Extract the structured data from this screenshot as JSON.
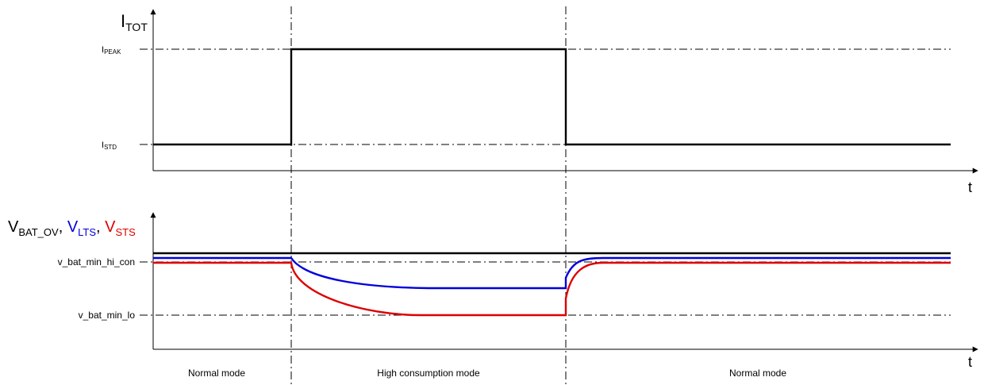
{
  "top_panel": {
    "y_axis_label": "I",
    "y_axis_label_sub": "TOT",
    "x_axis_label": "t",
    "levels": [
      {
        "id": "peak",
        "label": "I",
        "label_sub": "PEAK"
      },
      {
        "id": "std",
        "label": "I",
        "label_sub": "STD"
      }
    ]
  },
  "bottom_panel": {
    "y_axis_label": [
      {
        "text": "V",
        "sub": "BAT_OV",
        "color": "#000000"
      },
      {
        "text": ", ",
        "sub": "",
        "color": "#000000"
      },
      {
        "text": "V",
        "sub": "LTS",
        "color": "#0000dd"
      },
      {
        "text": ", ",
        "sub": "",
        "color": "#000000"
      },
      {
        "text": "V",
        "sub": "STS",
        "color": "#dd0000"
      }
    ],
    "x_axis_label": "t",
    "levels": [
      {
        "id": "hi",
        "label": "v_bat_min_hi_con"
      },
      {
        "id": "lo",
        "label": "v_bat_min_lo"
      }
    ],
    "traces": [
      {
        "name": "V_BAT_OV",
        "color": "#000000"
      },
      {
        "name": "V_LTS",
        "color": "#0000dd"
      },
      {
        "name": "V_STS",
        "color": "#dd0000"
      }
    ]
  },
  "phases": [
    "Normal mode",
    "High consumption mode",
    "Normal mode"
  ]
}
